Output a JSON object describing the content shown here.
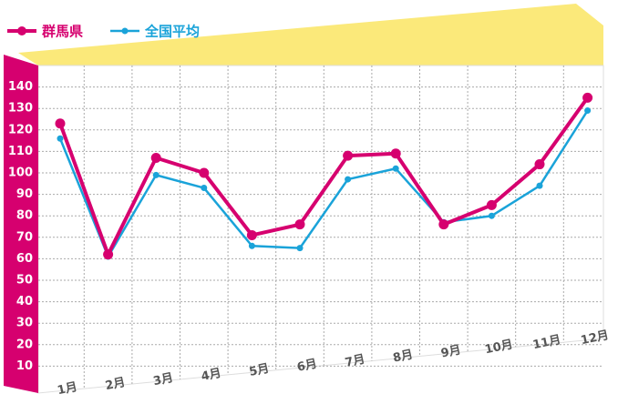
{
  "chart_data": {
    "type": "line",
    "categories": [
      "1月",
      "2月",
      "3月",
      "4月",
      "5月",
      "6月",
      "7月",
      "8月",
      "9月",
      "10月",
      "11月",
      "12月"
    ],
    "series": [
      {
        "name": "群馬県",
        "color": "#d6006f",
        "values": [
          123,
          62,
          107,
          100,
          71,
          76,
          108,
          109,
          76,
          85,
          104,
          135
        ]
      },
      {
        "name": "全国平均",
        "color": "#1aa3d9",
        "values": [
          116,
          61,
          99,
          93,
          66,
          65,
          97,
          102,
          77,
          80,
          94,
          129
        ]
      }
    ],
    "ylim": [
      0,
      150
    ],
    "yticks": [
      10,
      20,
      30,
      40,
      50,
      60,
      70,
      80,
      90,
      100,
      110,
      120,
      130,
      140
    ],
    "grid": true
  }
}
